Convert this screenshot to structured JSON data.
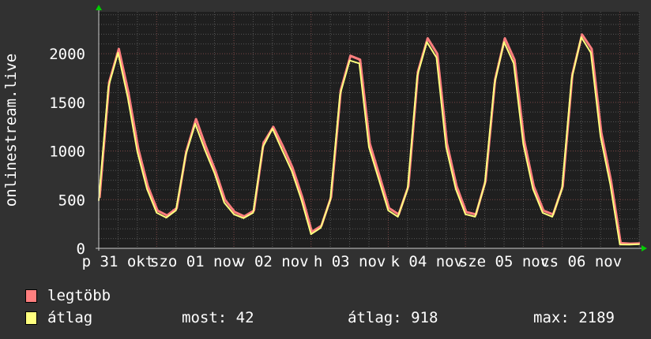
{
  "chart_data": {
    "type": "line",
    "ylabel": "onlinestream.live",
    "xlim": [
      "10-31 06:00",
      "11-07 06:00"
    ],
    "ylim": [
      0,
      2430
    ],
    "yticks": [
      0,
      500,
      1000,
      1500,
      2000
    ],
    "ytick_labels": [
      "0",
      "500",
      "1000",
      "1500",
      "2000"
    ],
    "xtick_labels": [
      "p 31 okt",
      "szo 01 nov",
      "v 02 nov",
      "h 03 nov",
      "k 04 nov",
      "sze 05 nov",
      "cs 06 nov"
    ],
    "xtick_positions": [
      "10-31 12:00",
      "11-01 12:00",
      "11-02 12:00",
      "11-03 12:00",
      "11-04 12:00",
      "11-05 12:00",
      "11-06 12:00"
    ],
    "grid": true,
    "background": "#1f1f1f",
    "x": [
      "10-31 06:00",
      "10-31 09:00",
      "10-31 12:00",
      "10-31 15:00",
      "10-31 18:00",
      "10-31 21:00",
      "11-01 00:00",
      "11-01 03:00",
      "11-01 06:00",
      "11-01 09:00",
      "11-01 12:00",
      "11-01 15:00",
      "11-01 18:00",
      "11-01 21:00",
      "11-02 00:00",
      "11-02 03:00",
      "11-02 06:00",
      "11-02 09:00",
      "11-02 12:00",
      "11-02 15:00",
      "11-02 18:00",
      "11-02 21:00",
      "11-03 00:00",
      "11-03 03:00",
      "11-03 06:00",
      "11-03 09:00",
      "11-03 12:00",
      "11-03 15:00",
      "11-03 18:00",
      "11-03 21:00",
      "11-04 00:00",
      "11-04 03:00",
      "11-04 06:00",
      "11-04 09:00",
      "11-04 12:00",
      "11-04 15:00",
      "11-04 18:00",
      "11-04 21:00",
      "11-05 00:00",
      "11-05 03:00",
      "11-05 06:00",
      "11-05 09:00",
      "11-05 12:00",
      "11-05 15:00",
      "11-05 18:00",
      "11-05 21:00",
      "11-06 00:00",
      "11-06 03:00",
      "11-06 06:00",
      "11-06 09:00",
      "11-06 12:00",
      "11-06 15:00",
      "11-06 18:00",
      "11-06 21:00",
      "11-07 00:00",
      "11-07 03:00",
      "11-07 06:00"
    ],
    "series": [
      {
        "name": "legtöbb",
        "color": "#ff7f7f",
        "values": [
          510,
          1700,
          2040,
          1590,
          1020,
          630,
          380,
          330,
          405,
          990,
          1320,
          1040,
          790,
          490,
          365,
          320,
          380,
          1075,
          1240,
          1040,
          820,
          520,
          160,
          225,
          520,
          1620,
          1970,
          1930,
          1070,
          740,
          405,
          340,
          630,
          1810,
          2150,
          1990,
          1070,
          630,
          365,
          340,
          685,
          1730,
          2150,
          1930,
          1100,
          630,
          380,
          340,
          630,
          1780,
          2189,
          2040,
          1180,
          685,
          45,
          40,
          42
        ]
      },
      {
        "name": "átlag",
        "color": "#ffff7f",
        "values": [
          490,
          1660,
          2010,
          1555,
          990,
          610,
          365,
          315,
          390,
          955,
          1280,
          1010,
          770,
          470,
          350,
          310,
          365,
          1040,
          1230,
          1010,
          795,
          500,
          145,
          210,
          500,
          1580,
          1930,
          1900,
          1040,
          715,
          390,
          325,
          610,
          1770,
          2120,
          1960,
          1040,
          610,
          350,
          325,
          660,
          1690,
          2120,
          1900,
          1070,
          610,
          365,
          325,
          610,
          1740,
          2170,
          2010,
          1150,
          660,
          40,
          38,
          42
        ]
      }
    ]
  },
  "legend": {
    "items": [
      {
        "label": "legtöbb",
        "color": "#ff7f7f"
      },
      {
        "label": "átlag",
        "color": "#ffff7f"
      }
    ],
    "stats": {
      "most": "most: 42",
      "atlag": "átlag: 918",
      "max": "max: 2189"
    }
  }
}
